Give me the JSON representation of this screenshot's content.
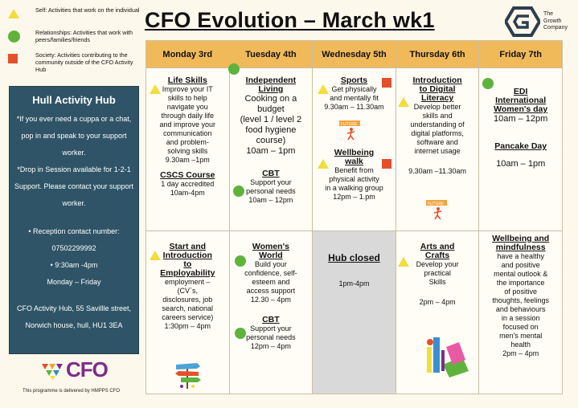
{
  "legend": [
    {
      "shape": "triangle-icon",
      "text": "Self: Activities that work on the individual"
    },
    {
      "shape": "circle-icon",
      "text": "Relationships: Activities that work with peers/families/friends"
    },
    {
      "shape": "square-icon",
      "text": "Society: Activities contributing to the community outside of the CFO Activity Hub"
    }
  ],
  "title": "CFO Evolution – March wk1",
  "logo": {
    "line1": "The",
    "line2": "Growth",
    "line3": "Company"
  },
  "hub_panel": {
    "title": "Hull Activity Hub",
    "note1": "*If you ever need a cuppa or a chat, pop in and speak to your support worker.",
    "note2": "*Drop in Session available for 1-2-1 Support. Please contact your support worker.",
    "reception": "•   Reception contact number: 07502299992",
    "hours1": "•   9:30am -4pm",
    "hours2": "Monday – Friday",
    "address": "CFO Activity Hub, 55 Savillle street, Norwich house, hull, HU1 3EA"
  },
  "cfo_logo": "CFO",
  "delivered_by": "This programme is delivered by HMPPS CFO",
  "days": [
    "Monday 3rd",
    "Tuesday 4th",
    "Wednesday 5th",
    "Thursday 6th",
    "Friday 7th"
  ],
  "week1": {
    "mon": {
      "a_title": "Life Skills",
      "a_lines": [
        "Improve your IT",
        "skills to help",
        "navigate you",
        "through daily life",
        "and improve your",
        "communication",
        "and problem-",
        "solving skills",
        "9.30am –1pm"
      ],
      "b_title": "CSCS Course",
      "b_lines": [
        "1 day accredited",
        "10am-4pm"
      ]
    },
    "tue": {
      "a_title1": "Independent",
      "a_title2": "Living",
      "a_lines": [
        "Cooking on a",
        "budget",
        "(level 1 / level 2",
        "food hygiene",
        "course)",
        "10am – 1pm"
      ],
      "b_title": "CBT",
      "b_lines": [
        "Support your",
        "personal needs",
        "10am – 12pm"
      ]
    },
    "wed": {
      "a_title": "Sports",
      "a_lines": [
        "Get physically",
        "and mentally fit",
        "9.30am – 11.30am"
      ],
      "b_title1": "Wellbeing",
      "b_title2": "walk",
      "b_lines": [
        "Benefit from",
        "physical activity",
        "in a walking group",
        "12pm – 1.pm"
      ]
    },
    "thu": {
      "a_title1": "Introduction",
      "a_title2": "to Digital",
      "a_title3": "Literacy",
      "a_lines": [
        "Develop better",
        "skills and",
        "understanding of",
        "digital platforms,",
        "software and",
        "internet usage"
      ],
      "time": "9.30am –11.30am"
    },
    "fri": {
      "a_title1": "EDI",
      "a_title2": "International",
      "a_title3": "Women's day",
      "a_time": "10am – 12pm",
      "b_title": "Pancake Day",
      "b_time": "10am – 1pm"
    }
  },
  "week2": {
    "mon": {
      "title1": "Start and",
      "title2": "Introduction",
      "title3": "to",
      "title4": "Employability",
      "lines": [
        "employment –",
        "(CV`s,",
        "disclosures, job",
        "search, national",
        "careers service)",
        "1:30pm – 4pm"
      ]
    },
    "tue": {
      "a_title1": "Women's",
      "a_title2": "World",
      "a_lines": [
        "Build your",
        "confidence, self-",
        "esteem and",
        "access support",
        "12.30 – 4pm"
      ],
      "b_title": "CBT",
      "b_lines": [
        "Support your",
        "personal needs",
        "12pm – 4pm"
      ]
    },
    "wed": {
      "title": "Hub closed",
      "time": "1pm-4pm"
    },
    "thu": {
      "title1": "Arts and",
      "title2": "Crafts",
      "lines": [
        "Develop your",
        "practical",
        "Skills"
      ],
      "time": "2pm – 4pm"
    },
    "fri": {
      "title1": "Wellbeing and",
      "title2": "mindfulness",
      "lines": [
        "have a healthy",
        "and positive",
        "mental outlook &",
        "the importance",
        "of positive",
        "thoughts, feelings",
        "and behaviours",
        "in a session",
        "focused on",
        "men's mental",
        "health",
        "2pm – 4pm"
      ]
    }
  },
  "future_sign": "FUTURE",
  "colors": {
    "header": "#f0b95a",
    "panel": "#2f5467",
    "triangle": "#f3dc3c",
    "circle": "#5fb33d",
    "square": "#e4502c",
    "closed": "#d9d9d9"
  }
}
